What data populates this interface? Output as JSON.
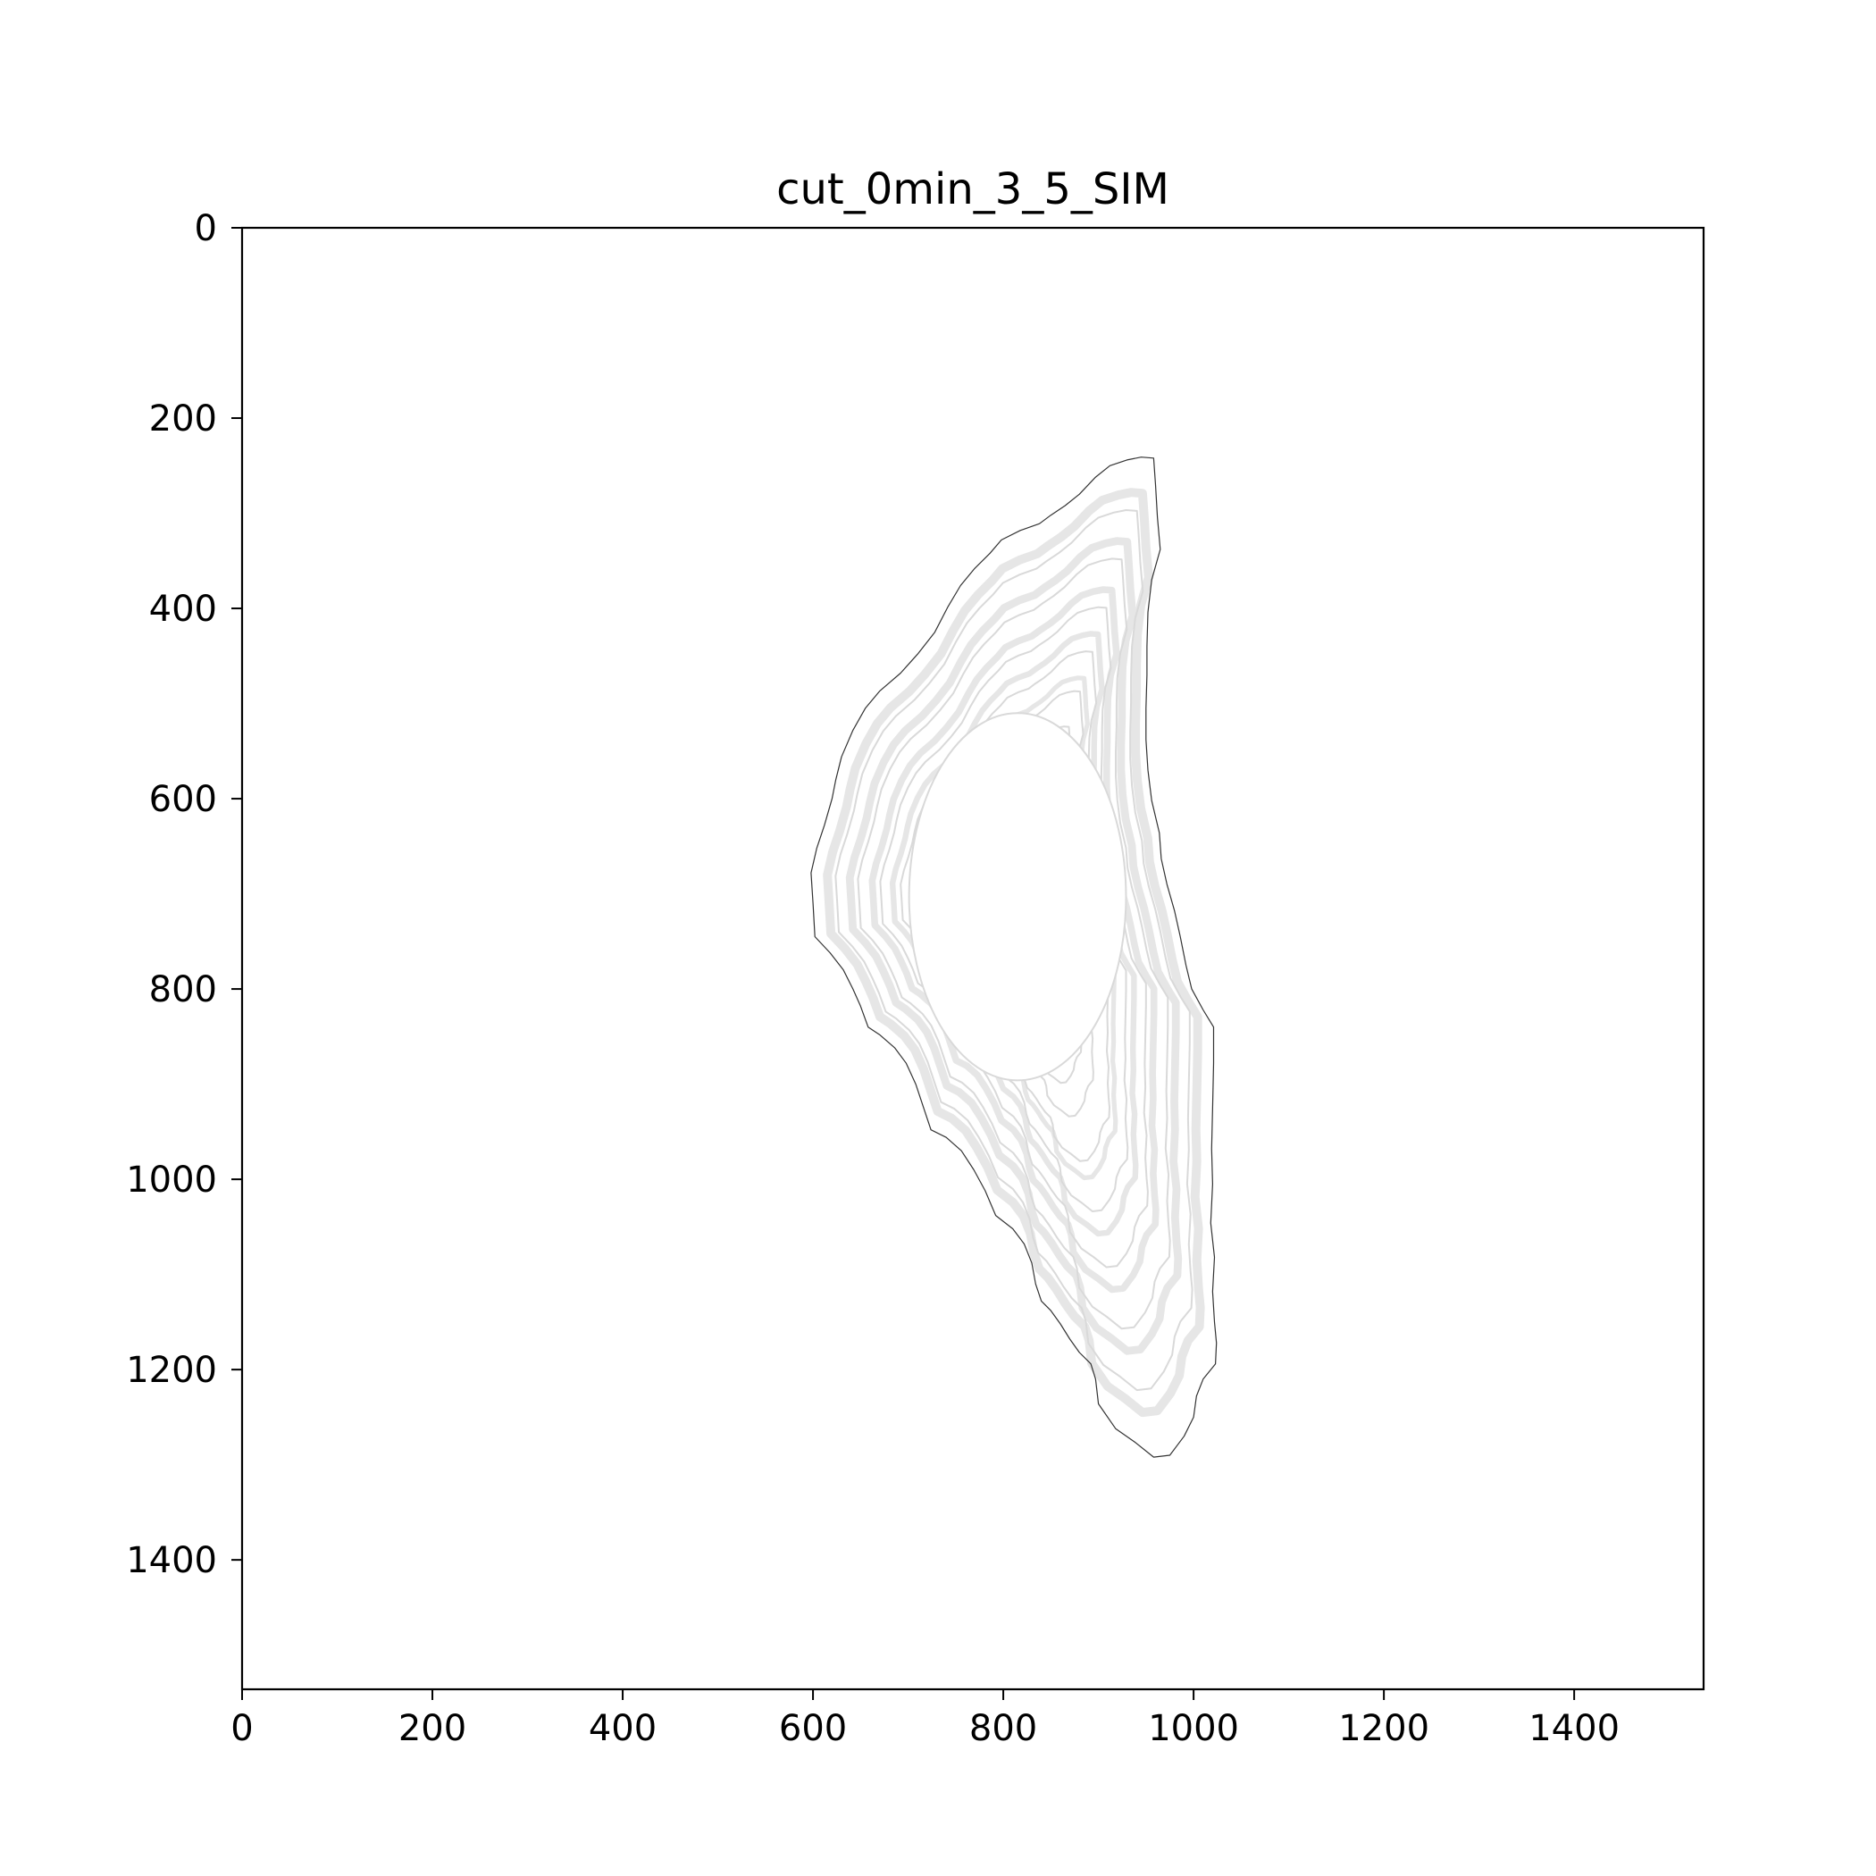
{
  "chart_data": {
    "type": "contour",
    "title": "cut_0min_3_5_SIM",
    "xlabel": "",
    "ylabel": "",
    "xlim": [
      0,
      1536
    ],
    "ylim": [
      1536,
      0
    ],
    "y_inverted": true,
    "grid": false,
    "xticks": [
      0,
      200,
      400,
      600,
      800,
      1000,
      1200,
      1400
    ],
    "xtick_labels": [
      "0",
      "200",
      "400",
      "600",
      "800",
      "1000",
      "1200",
      "1400"
    ],
    "yticks": [
      0,
      200,
      400,
      600,
      800,
      1000,
      1200,
      1400
    ],
    "ytick_labels": [
      "0",
      "200",
      "400",
      "600",
      "800",
      "1000",
      "1200",
      "1400"
    ],
    "colors": {
      "outline": "#333333",
      "contour_lines": "#d9d9d9",
      "contour_bands": "#e6e6e6",
      "background": "#ffffff"
    },
    "outer_boundary": [
      [
        958,
        242
      ],
      [
        945,
        241
      ],
      [
        930,
        244
      ],
      [
        912,
        250
      ],
      [
        897,
        262
      ],
      [
        880,
        280
      ],
      [
        865,
        292
      ],
      [
        850,
        302
      ],
      [
        838,
        311
      ],
      [
        818,
        318
      ],
      [
        798,
        328
      ],
      [
        786,
        342
      ],
      [
        770,
        358
      ],
      [
        755,
        376
      ],
      [
        742,
        398
      ],
      [
        728,
        425
      ],
      [
        710,
        448
      ],
      [
        692,
        468
      ],
      [
        670,
        487
      ],
      [
        655,
        505
      ],
      [
        642,
        528
      ],
      [
        630,
        556
      ],
      [
        624,
        580
      ],
      [
        620,
        600
      ],
      [
        612,
        628
      ],
      [
        604,
        652
      ],
      [
        598,
        678
      ],
      [
        600,
        710
      ],
      [
        602,
        745
      ],
      [
        618,
        762
      ],
      [
        632,
        780
      ],
      [
        642,
        800
      ],
      [
        650,
        818
      ],
      [
        658,
        840
      ],
      [
        670,
        848
      ],
      [
        686,
        862
      ],
      [
        698,
        878
      ],
      [
        708,
        900
      ],
      [
        716,
        924
      ],
      [
        724,
        948
      ],
      [
        740,
        956
      ],
      [
        756,
        970
      ],
      [
        769,
        990
      ],
      [
        781,
        1012
      ],
      [
        792,
        1038
      ],
      [
        810,
        1052
      ],
      [
        822,
        1068
      ],
      [
        830,
        1088
      ],
      [
        834,
        1110
      ],
      [
        840,
        1128
      ],
      [
        850,
        1138
      ],
      [
        860,
        1152
      ],
      [
        870,
        1168
      ],
      [
        880,
        1182
      ],
      [
        892,
        1194
      ],
      [
        897,
        1210
      ],
      [
        900,
        1236
      ],
      [
        918,
        1262
      ],
      [
        938,
        1276
      ],
      [
        958,
        1292
      ],
      [
        975,
        1290
      ],
      [
        990,
        1270
      ],
      [
        1000,
        1250
      ],
      [
        1003,
        1228
      ],
      [
        1010,
        1210
      ],
      [
        1023,
        1194
      ],
      [
        1024,
        1172
      ],
      [
        1022,
        1150
      ],
      [
        1020,
        1118
      ],
      [
        1022,
        1082
      ],
      [
        1018,
        1046
      ],
      [
        1020,
        1005
      ],
      [
        1019,
        968
      ],
      [
        1020,
        925
      ],
      [
        1021,
        878
      ],
      [
        1021,
        840
      ],
      [
        1010,
        822
      ],
      [
        998,
        800
      ],
      [
        992,
        775
      ],
      [
        986,
        745
      ],
      [
        980,
        718
      ],
      [
        972,
        690
      ],
      [
        966,
        663
      ],
      [
        964,
        636
      ],
      [
        956,
        602
      ],
      [
        952,
        570
      ],
      [
        950,
        538
      ],
      [
        950,
        505
      ],
      [
        951,
        470
      ],
      [
        951,
        440
      ],
      [
        952,
        404
      ],
      [
        956,
        370
      ],
      [
        965,
        338
      ],
      [
        962,
        304
      ],
      [
        960,
        270
      ]
    ],
    "center": [
      812,
      705
    ],
    "contour_levels": [
      0.88,
      0.77,
      0.66,
      0.56,
      0.47,
      0.39,
      0.33
    ],
    "band_levels": [
      0.92,
      0.81,
      0.7,
      0.6,
      0.5
    ],
    "inner_ellipse": {
      "cx": 815,
      "cy": 703,
      "rx": 114,
      "ry": 193
    }
  }
}
